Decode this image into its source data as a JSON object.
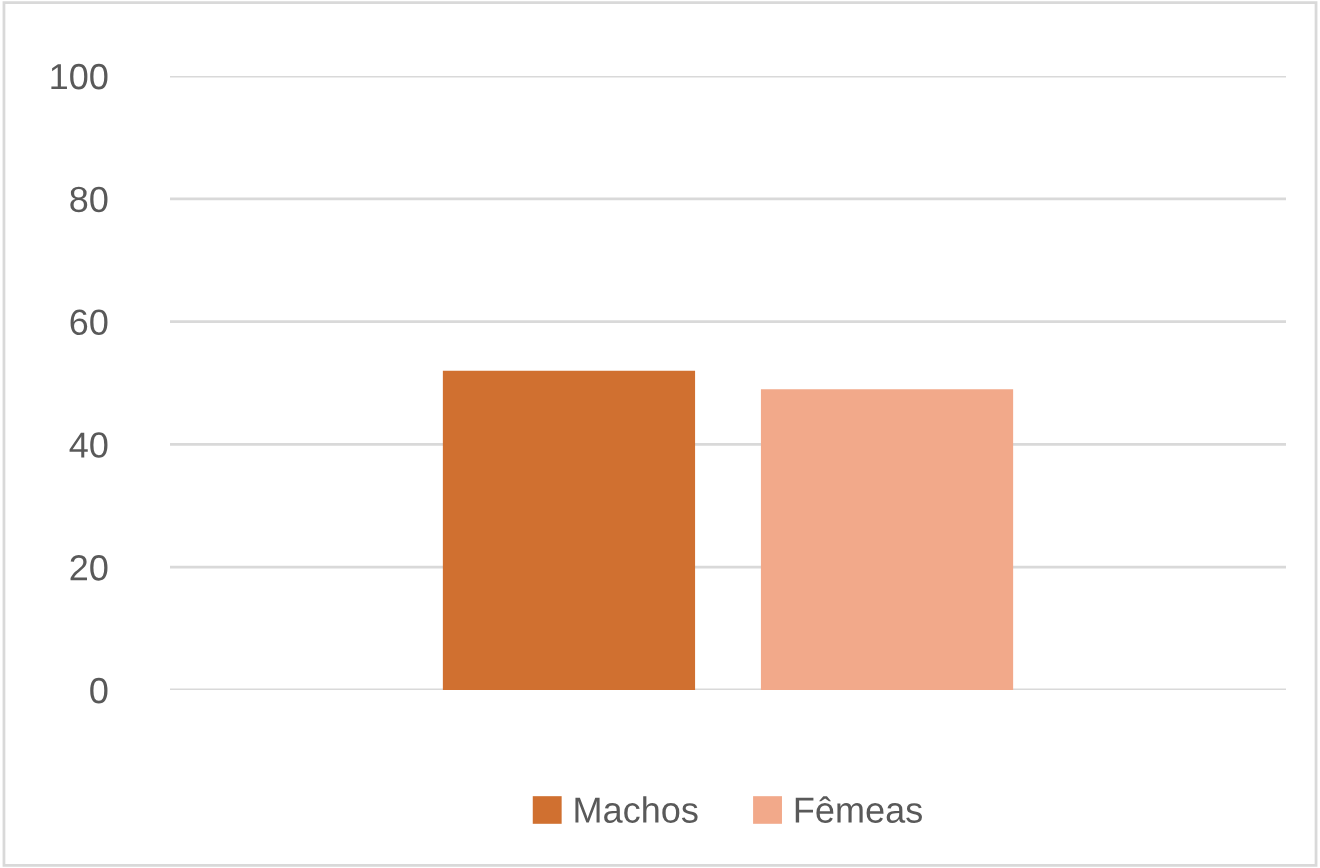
{
  "chart_data": {
    "type": "bar",
    "categories": [
      null
    ],
    "series": [
      {
        "name": "Machos",
        "color": "#d07030",
        "values": [
          52
        ]
      },
      {
        "name": "Fêmeas",
        "color": "#f2a98a",
        "values": [
          49
        ]
      }
    ],
    "ylim": [
      0,
      100
    ],
    "yticks": [
      0,
      20,
      40,
      60,
      80,
      100
    ],
    "grid": "y",
    "legend": "bottom"
  }
}
